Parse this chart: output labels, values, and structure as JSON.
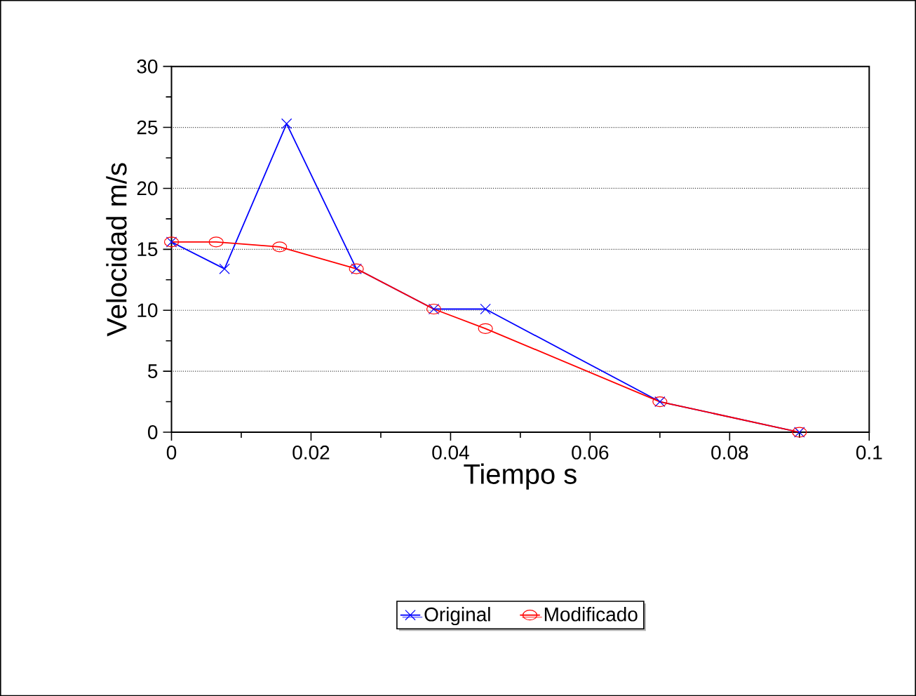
{
  "chart_data": {
    "type": "line",
    "xlabel": "Tiempo s",
    "ylabel": "Velocidad m/s",
    "xlim": [
      0,
      0.1
    ],
    "xticks": [
      0,
      0.02,
      0.04,
      0.06,
      0.08,
      0.1
    ],
    "ylim": [
      0,
      30
    ],
    "yticks": [
      0,
      5,
      10,
      15,
      20,
      25,
      30
    ],
    "grid": "y",
    "legend": "bottom",
    "line_style": "solid",
    "series": [
      {
        "name": "Original",
        "color": "#0000ff",
        "marker": "cross",
        "x": [
          0,
          0.0076,
          0.0165,
          0.0265,
          0.0376,
          0.045,
          0.07,
          0.09
        ],
        "values": [
          15.6,
          13.4,
          25.3,
          13.4,
          10.1,
          10.1,
          2.5,
          0
        ]
      },
      {
        "name": "Modificado",
        "color": "#ff0000",
        "marker": "circle",
        "x": [
          0,
          0.0064,
          0.0155,
          0.0265,
          0.0376,
          0.045,
          0.07,
          0.09
        ],
        "values": [
          15.6,
          15.6,
          15.2,
          13.4,
          10.1,
          8.5,
          2.5,
          0
        ]
      }
    ]
  }
}
